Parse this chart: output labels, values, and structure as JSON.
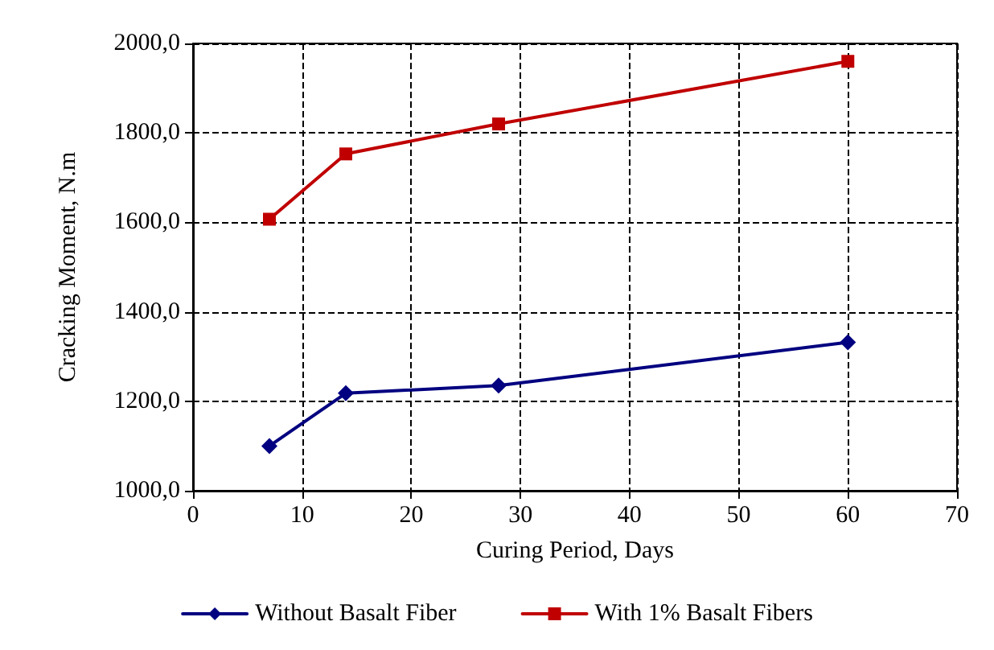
{
  "chart_data": {
    "type": "line",
    "xlabel": "Curing Period, Days",
    "ylabel": "Cracking Moment, N.m",
    "xlim": [
      0,
      70
    ],
    "xticks": [
      0,
      10,
      20,
      30,
      40,
      50,
      60,
      70
    ],
    "ylim": [
      1000,
      2000
    ],
    "yticks": [
      {
        "value": 1000,
        "label": "1000,0"
      },
      {
        "value": 1200,
        "label": "1200,0"
      },
      {
        "value": 1400,
        "label": "1400,0"
      },
      {
        "value": 1600,
        "label": "1600,0"
      },
      {
        "value": 1800,
        "label": "1800,0"
      },
      {
        "value": 2000,
        "label": "2000,0"
      }
    ],
    "x": [
      7,
      14,
      28,
      60
    ],
    "series": [
      {
        "name": "Without Basalt Fiber",
        "color": "#000080",
        "marker": "diamond",
        "values": [
          1100,
          1218,
          1235,
          1332
        ]
      },
      {
        "name": "With 1% Basalt Fibers",
        "color": "#c00000",
        "marker": "square",
        "values": [
          1607,
          1753,
          1820,
          1960
        ]
      }
    ],
    "grid": true,
    "legend": "bottom",
    "line_style": "solid"
  }
}
